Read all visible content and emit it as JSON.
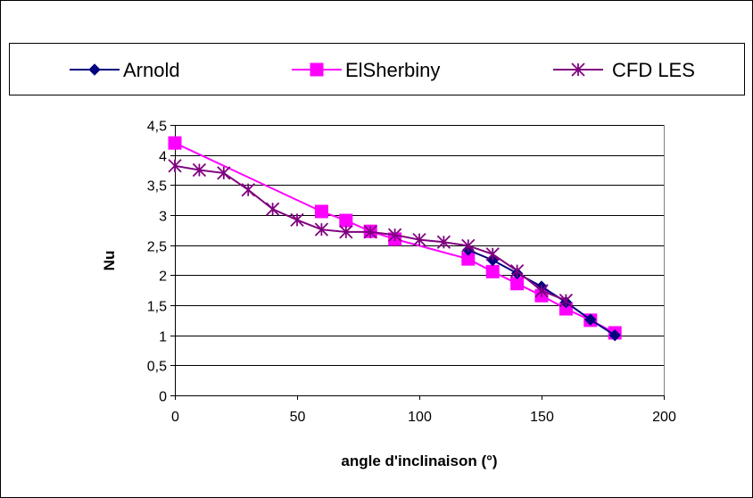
{
  "chart_data": {
    "type": "line",
    "title": "",
    "xlabel": "angle d'inclinaison (°)",
    "ylabel": "Nu",
    "xlim": [
      0,
      200
    ],
    "ylim": [
      0,
      4.5
    ],
    "x_ticks": [
      0,
      50,
      100,
      150,
      200
    ],
    "x_tick_labels": [
      "0",
      "50",
      "100",
      "150",
      "200"
    ],
    "y_ticks": [
      0,
      0.5,
      1,
      1.5,
      2,
      2.5,
      3,
      3.5,
      4,
      4.5
    ],
    "y_tick_labels": [
      "0",
      "0,5",
      "1",
      "1,5",
      "2",
      "2,5",
      "3",
      "3,5",
      "4",
      "4,5"
    ],
    "grid": "horizontal",
    "legend_position": "top",
    "series": [
      {
        "name": "Arnold",
        "color": "#000080",
        "marker": "diamond",
        "x": [
          120,
          130,
          140,
          150,
          160,
          170,
          180
        ],
        "y": [
          2.42,
          2.25,
          2.03,
          1.81,
          1.55,
          1.26,
          1.0
        ]
      },
      {
        "name": "ElSherbiny",
        "color": "#ff00ff",
        "marker": "square",
        "x": [
          0,
          60,
          70,
          80,
          90,
          120,
          130,
          140,
          150,
          160,
          170,
          180
        ],
        "y": [
          4.2,
          3.06,
          2.91,
          2.73,
          2.6,
          2.27,
          2.06,
          1.86,
          1.66,
          1.44,
          1.25,
          1.04
        ]
      },
      {
        "name": "CFD LES",
        "color": "#800080",
        "marker": "asterisk",
        "x": [
          0,
          10,
          20,
          30,
          40,
          50,
          60,
          70,
          80,
          90,
          100,
          110,
          120,
          130,
          140,
          150,
          160
        ],
        "y": [
          3.82,
          3.75,
          3.7,
          3.42,
          3.1,
          2.92,
          2.76,
          2.72,
          2.72,
          2.67,
          2.59,
          2.55,
          2.49,
          2.35,
          2.07,
          1.74,
          1.58
        ]
      }
    ]
  }
}
